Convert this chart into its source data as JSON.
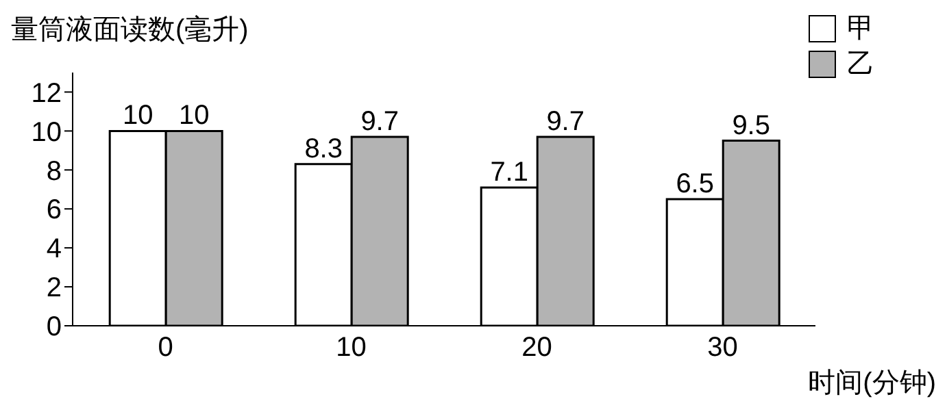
{
  "chart_data": {
    "type": "bar",
    "ylabel": "量筒液面读数(毫升)",
    "xlabel": "时间(分钟)",
    "categories": [
      "0",
      "10",
      "20",
      "30"
    ],
    "series": [
      {
        "name": "甲",
        "color": "#ffffff",
        "values": [
          10,
          8.3,
          7.1,
          6.5
        ]
      },
      {
        "name": "乙",
        "color": "#b3b3b3",
        "values": [
          10,
          9.7,
          9.7,
          9.5
        ]
      }
    ],
    "ylim": [
      0,
      13
    ],
    "yticks": [
      0,
      2,
      4,
      6,
      8,
      10,
      12
    ],
    "data_labels": true,
    "legend": "top right"
  }
}
